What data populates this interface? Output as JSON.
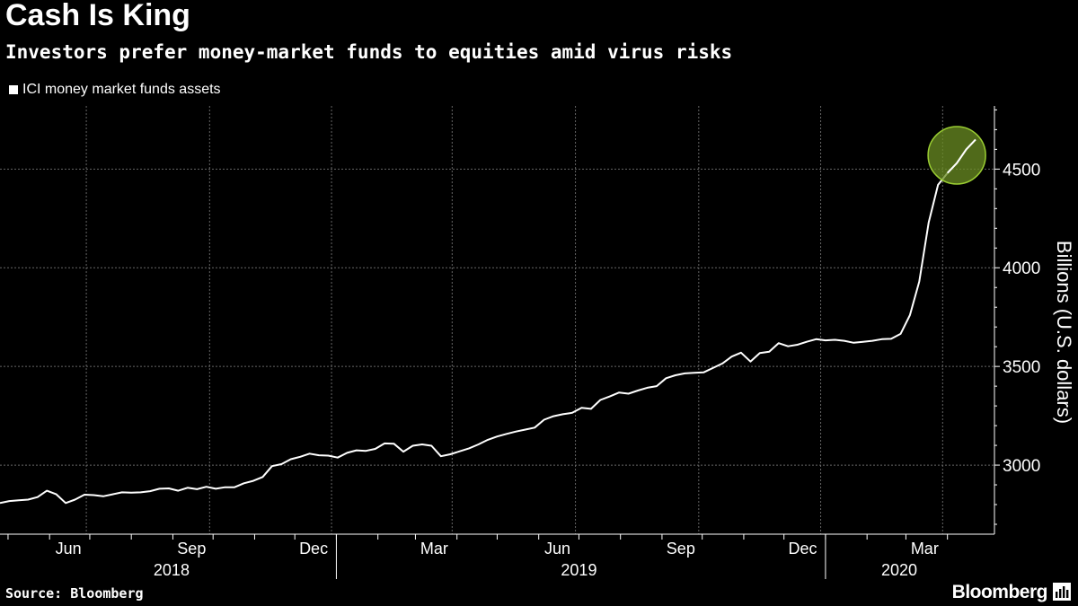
{
  "header": {
    "title": "Cash Is King",
    "subtitle": "Investors prefer money-market funds to equities amid virus risks"
  },
  "legend": {
    "label": "ICI money market funds assets"
  },
  "footer": {
    "source": "Source: Bloomberg",
    "brand": "Bloomberg"
  },
  "colors": {
    "background": "#000000",
    "line": "#ffffff",
    "grid": "#666666",
    "highlight": "#6b8e23"
  },
  "chart_data": {
    "type": "line",
    "title": "Cash Is King",
    "subtitle": "Investors prefer money-market funds to equities amid virus risks",
    "ylabel": "Billions (U.S. dollars)",
    "ylim": [
      2650,
      4820
    ],
    "y_ticks": [
      3000,
      3500,
      4000,
      4500
    ],
    "x_range": [
      "2018-04-25",
      "2020-04-22"
    ],
    "x_ticks": [
      {
        "date": "2018-06-15",
        "label": "Jun"
      },
      {
        "date": "2018-09-15",
        "label": "Sep"
      },
      {
        "date": "2018-12-15",
        "label": "Dec"
      },
      {
        "date": "2019-03-15",
        "label": "Mar"
      },
      {
        "date": "2019-06-15",
        "label": "Jun"
      },
      {
        "date": "2019-09-15",
        "label": "Sep"
      },
      {
        "date": "2019-12-15",
        "label": "Dec"
      },
      {
        "date": "2020-03-15",
        "label": "Mar"
      }
    ],
    "year_labels": [
      {
        "date": "2018-08-31",
        "label": "2018"
      },
      {
        "date": "2019-07-01",
        "label": "2019"
      },
      {
        "date": "2020-02-25",
        "label": "2020"
      }
    ],
    "year_boundaries": [
      "2019-01-01",
      "2020-01-01"
    ],
    "grid": true,
    "legend_position": "top-left",
    "annotation": {
      "type": "circle",
      "date": "2020-04-08",
      "value": 4570
    },
    "series": [
      {
        "name": "ICI money market funds assets",
        "x": [
          "2018-04-25",
          "2018-05-02",
          "2018-05-09",
          "2018-05-16",
          "2018-05-23",
          "2018-05-30",
          "2018-06-06",
          "2018-06-13",
          "2018-06-20",
          "2018-06-27",
          "2018-07-04",
          "2018-07-11",
          "2018-07-18",
          "2018-07-25",
          "2018-08-01",
          "2018-08-08",
          "2018-08-15",
          "2018-08-22",
          "2018-08-29",
          "2018-09-05",
          "2018-09-12",
          "2018-09-19",
          "2018-09-26",
          "2018-10-03",
          "2018-10-10",
          "2018-10-17",
          "2018-10-24",
          "2018-10-31",
          "2018-11-07",
          "2018-11-14",
          "2018-11-21",
          "2018-11-28",
          "2018-12-05",
          "2018-12-12",
          "2018-12-19",
          "2018-12-26",
          "2019-01-02",
          "2019-01-09",
          "2019-01-16",
          "2019-01-23",
          "2019-01-30",
          "2019-02-06",
          "2019-02-13",
          "2019-02-20",
          "2019-02-27",
          "2019-03-06",
          "2019-03-13",
          "2019-03-20",
          "2019-03-27",
          "2019-04-03",
          "2019-04-10",
          "2019-04-17",
          "2019-04-24",
          "2019-05-01",
          "2019-05-08",
          "2019-05-15",
          "2019-05-22",
          "2019-05-29",
          "2019-06-05",
          "2019-06-12",
          "2019-06-19",
          "2019-06-26",
          "2019-07-03",
          "2019-07-10",
          "2019-07-17",
          "2019-07-24",
          "2019-07-31",
          "2019-08-07",
          "2019-08-14",
          "2019-08-21",
          "2019-08-28",
          "2019-09-04",
          "2019-09-11",
          "2019-09-18",
          "2019-09-25",
          "2019-10-02",
          "2019-10-09",
          "2019-10-16",
          "2019-10-23",
          "2019-10-30",
          "2019-11-06",
          "2019-11-13",
          "2019-11-20",
          "2019-11-27",
          "2019-12-04",
          "2019-12-11",
          "2019-12-18",
          "2019-12-25",
          "2020-01-01",
          "2020-01-08",
          "2020-01-15",
          "2020-01-22",
          "2020-01-29",
          "2020-02-05",
          "2020-02-12",
          "2020-02-19",
          "2020-02-26",
          "2020-03-04",
          "2020-03-11",
          "2020-03-18",
          "2020-03-25",
          "2020-04-01",
          "2020-04-08",
          "2020-04-15",
          "2020-04-22"
        ],
        "values": [
          2808,
          2818,
          2822,
          2825,
          2838,
          2870,
          2852,
          2808,
          2825,
          2850,
          2848,
          2842,
          2852,
          2862,
          2860,
          2862,
          2868,
          2880,
          2882,
          2870,
          2885,
          2878,
          2890,
          2880,
          2888,
          2888,
          2908,
          2920,
          2940,
          2995,
          3005,
          3030,
          3042,
          3058,
          3050,
          3048,
          3038,
          3062,
          3075,
          3072,
          3082,
          3110,
          3108,
          3068,
          3098,
          3105,
          3098,
          3045,
          3055,
          3070,
          3085,
          3105,
          3128,
          3145,
          3158,
          3170,
          3180,
          3190,
          3230,
          3248,
          3258,
          3265,
          3290,
          3285,
          3330,
          3348,
          3368,
          3362,
          3378,
          3392,
          3400,
          3440,
          3455,
          3465,
          3468,
          3470,
          3492,
          3515,
          3550,
          3570,
          3525,
          3568,
          3575,
          3618,
          3602,
          3610,
          3625,
          3638,
          3632,
          3635,
          3630,
          3620,
          3625,
          3630,
          3638,
          3640,
          3665,
          3760,
          3930,
          4230,
          4420,
          4480,
          4530,
          4600,
          4650
        ]
      }
    ]
  }
}
